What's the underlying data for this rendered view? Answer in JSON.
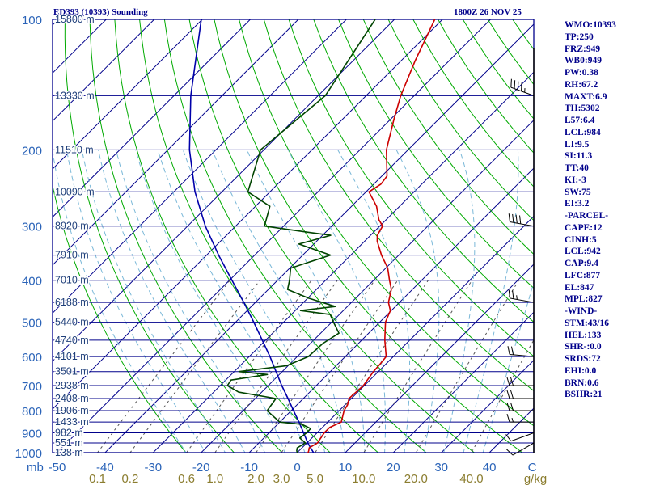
{
  "header": {
    "title_left": "ED393 (10393) Sounding",
    "title_right": "1800Z 26 NOV 25"
  },
  "indices": [
    "WMO:10393",
    "TP:250",
    "FRZ:949",
    "WB0:949",
    "PW:0.38",
    "RH:67.2",
    "MAXT:6.9",
    "TH:5302",
    "L57:6.4",
    "LCL:984",
    "LI:9.5",
    "SI:11.3",
    "TT:40",
    "KI:-3",
    "SW:75",
    "EI:3.2",
    "-PARCEL-",
    "CAPE:12",
    "CINH:5",
    "LCL:942",
    "CAP:9.4",
    "LFC:877",
    "EL:847",
    "MPL:827",
    "-WIND-",
    "STM:43/16",
    "HEL:133",
    "SHR-:0.0",
    "SRDS:72",
    "EHI:0.0",
    "BRN:0.6",
    "BSHR:21"
  ],
  "colors": {
    "isobar": "#00008b",
    "isotherm": "#00008b",
    "dry_adiabat": "#00aa00",
    "moist_adiabat": "#7ab8d8",
    "mixing_ratio": "#555555",
    "temperature": "#cc0000",
    "dewpoint": "#004400",
    "parcel": "#0000aa",
    "label": "#2a63b8",
    "mixing_label": "#8b7d2f"
  },
  "chart_data": {
    "type": "line",
    "title": "ED393 (10393) Sounding",
    "xlabel": "C",
    "ylabel": "mb",
    "xlim": [
      -50,
      50
    ],
    "ylim": [
      1000,
      100
    ],
    "pressure_labels": [
      "100",
      "200",
      "300",
      "400",
      "500",
      "600",
      "700",
      "800",
      "900",
      "1000"
    ],
    "y_axis_unit": "mb",
    "temperature_ticks": [
      {
        "value": -50,
        "label": "-50"
      },
      {
        "value": -40,
        "label": "-40"
      },
      {
        "value": -30,
        "label": "-30"
      },
      {
        "value": -20,
        "label": "-20"
      },
      {
        "value": -10,
        "label": "-10"
      },
      {
        "value": 0,
        "label": "0"
      },
      {
        "value": 10,
        "label": "10"
      },
      {
        "value": 20,
        "label": "20"
      },
      {
        "value": 30,
        "label": "30"
      },
      {
        "value": 40,
        "label": "40"
      }
    ],
    "x_axis_unit": "C",
    "height_levels": [
      {
        "p": 100,
        "label": "15800 m"
      },
      {
        "p": 150,
        "label": "13330 m"
      },
      {
        "p": 200,
        "label": "11510 m"
      },
      {
        "p": 250,
        "label": "10090 m"
      },
      {
        "p": 300,
        "label": "8920 m"
      },
      {
        "p": 350,
        "label": "7910 m"
      },
      {
        "p": 400,
        "label": "7010 m"
      },
      {
        "p": 450,
        "label": "6188 m"
      },
      {
        "p": 500,
        "label": "5440 m"
      },
      {
        "p": 550,
        "label": "4740 m"
      },
      {
        "p": 600,
        "label": "4101 m"
      },
      {
        "p": 650,
        "label": "3501 m"
      },
      {
        "p": 700,
        "label": "2938 m"
      },
      {
        "p": 750,
        "label": "2408 m"
      },
      {
        "p": 800,
        "label": "1906 m"
      },
      {
        "p": 850,
        "label": "1433 m"
      },
      {
        "p": 900,
        "label": "982 m"
      },
      {
        "p": 950,
        "label": "551 m"
      },
      {
        "p": 1000,
        "label": "138 m"
      }
    ],
    "mixing_ratio_labels": [
      {
        "value": 0.1,
        "label": "0.1"
      },
      {
        "value": 0.2,
        "label": "0.2"
      },
      {
        "value": 0.6,
        "label": "0.6"
      },
      {
        "value": 1.0,
        "label": "1.0"
      },
      {
        "value": 2.0,
        "label": "2.0"
      },
      {
        "value": 3.0,
        "label": "3.0"
      },
      {
        "value": 5.0,
        "label": "5.0"
      },
      {
        "value": 10.0,
        "label": "10.0"
      },
      {
        "value": 20.0,
        "label": "20.0"
      },
      {
        "value": 40.0,
        "label": "40.0"
      }
    ],
    "mixing_ratio_unit": "g/kg",
    "series": [
      {
        "key": "temperature",
        "points": [
          {
            "p": 1005,
            "t": 2.4
          },
          {
            "p": 990,
            "t": 2.0
          },
          {
            "p": 975,
            "t": 1.5
          },
          {
            "p": 950,
            "t": 2.2
          },
          {
            "p": 900,
            "t": 1.5
          },
          {
            "p": 875,
            "t": 1.5
          },
          {
            "p": 850,
            "t": 2.8
          },
          {
            "p": 800,
            "t": 1.0
          },
          {
            "p": 775,
            "t": 0.5
          },
          {
            "p": 750,
            "t": -0.5
          },
          {
            "p": 700,
            "t": -0.2
          },
          {
            "p": 650,
            "t": -1.0
          },
          {
            "p": 625,
            "t": -1.2
          },
          {
            "p": 600,
            "t": -1.5
          },
          {
            "p": 550,
            "t": -5.2
          },
          {
            "p": 500,
            "t": -8.8
          },
          {
            "p": 470,
            "t": -10.2
          },
          {
            "p": 450,
            "t": -12.3
          },
          {
            "p": 420,
            "t": -14.4
          },
          {
            "p": 400,
            "t": -16.7
          },
          {
            "p": 375,
            "t": -19.6
          },
          {
            "p": 350,
            "t": -23.6
          },
          {
            "p": 325,
            "t": -27.4
          },
          {
            "p": 315,
            "t": -28.6
          },
          {
            "p": 300,
            "t": -29.4
          },
          {
            "p": 290,
            "t": -31.5
          },
          {
            "p": 270,
            "t": -34.8
          },
          {
            "p": 250,
            "t": -39.4
          },
          {
            "p": 240,
            "t": -38.5
          },
          {
            "p": 230,
            "t": -38.9
          },
          {
            "p": 200,
            "t": -44.5
          },
          {
            "p": 170,
            "t": -49.3
          },
          {
            "p": 150,
            "t": -52.8
          },
          {
            "p": 125,
            "t": -57.0
          },
          {
            "p": 100,
            "t": -61.6
          }
        ]
      },
      {
        "key": "dewpoint",
        "points": [
          {
            "p": 1005,
            "t": 0.3
          },
          {
            "p": 990,
            "t": -0.5
          },
          {
            "p": 975,
            "t": -1.0
          },
          {
            "p": 950,
            "t": -0.3
          },
          {
            "p": 925,
            "t": -2.5
          },
          {
            "p": 900,
            "t": -2.2
          },
          {
            "p": 880,
            "t": -2.2
          },
          {
            "p": 860,
            "t": -5.0
          },
          {
            "p": 850,
            "t": -10.0
          },
          {
            "p": 800,
            "t": -15.0
          },
          {
            "p": 750,
            "t": -15.7
          },
          {
            "p": 725,
            "t": -24.8
          },
          {
            "p": 700,
            "t": -28.5
          },
          {
            "p": 680,
            "t": -28.9
          },
          {
            "p": 660,
            "t": -22.5
          },
          {
            "p": 650,
            "t": -29.0
          },
          {
            "p": 630,
            "t": -20.3
          },
          {
            "p": 600,
            "t": -17.7
          },
          {
            "p": 560,
            "t": -17.4
          },
          {
            "p": 530,
            "t": -16.2
          },
          {
            "p": 500,
            "t": -19.6
          },
          {
            "p": 480,
            "t": -21.9
          },
          {
            "p": 470,
            "t": -28.9
          },
          {
            "p": 460,
            "t": -22.5
          },
          {
            "p": 440,
            "t": -29.8
          },
          {
            "p": 420,
            "t": -36.0
          },
          {
            "p": 400,
            "t": -37.5
          },
          {
            "p": 375,
            "t": -39.8
          },
          {
            "p": 350,
            "t": -34.2
          },
          {
            "p": 330,
            "t": -43.1
          },
          {
            "p": 315,
            "t": -38.3
          },
          {
            "p": 310,
            "t": -43.5
          },
          {
            "p": 300,
            "t": -54.0
          },
          {
            "p": 270,
            "t": -57.0
          },
          {
            "p": 250,
            "t": -64.6
          },
          {
            "p": 200,
            "t": -70.7
          },
          {
            "p": 150,
            "t": -68.5
          },
          {
            "p": 100,
            "t": -74.0
          }
        ]
      },
      {
        "key": "parcel",
        "points": [
          {
            "p": 1000,
            "t": 3.4
          },
          {
            "p": 975,
            "t": 1.8
          },
          {
            "p": 950,
            "t": 0.2
          },
          {
            "p": 900,
            "t": -2.8
          },
          {
            "p": 850,
            "t": -6.0
          },
          {
            "p": 800,
            "t": -9.5
          },
          {
            "p": 750,
            "t": -13.2
          },
          {
            "p": 700,
            "t": -17.2
          },
          {
            "p": 650,
            "t": -21.3
          },
          {
            "p": 600,
            "t": -25.7
          },
          {
            "p": 550,
            "t": -30.7
          },
          {
            "p": 500,
            "t": -36.2
          },
          {
            "p": 450,
            "t": -42.4
          },
          {
            "p": 400,
            "t": -49.5
          },
          {
            "p": 350,
            "t": -57.5
          },
          {
            "p": 300,
            "t": -66.3
          },
          {
            "p": 250,
            "t": -75.6
          },
          {
            "p": 200,
            "t": -85.5
          },
          {
            "p": 150,
            "t": -96.5
          },
          {
            "p": 100,
            "t": -110.2
          }
        ]
      }
    ],
    "wind_barbs": [
      {
        "p": 150,
        "dir": 290,
        "kt": 45
      },
      {
        "p": 300,
        "dir": 280,
        "kt": 40
      },
      {
        "p": 450,
        "dir": 280,
        "kt": 25
      },
      {
        "p": 600,
        "dir": 275,
        "kt": 20
      },
      {
        "p": 700,
        "dir": 270,
        "kt": 20
      },
      {
        "p": 750,
        "dir": 270,
        "kt": 20
      },
      {
        "p": 800,
        "dir": 270,
        "kt": 20
      },
      {
        "p": 850,
        "dir": 270,
        "kt": 15
      },
      {
        "p": 900,
        "dir": 250,
        "kt": 10
      },
      {
        "p": 950,
        "dir": 240,
        "kt": 10
      }
    ]
  }
}
